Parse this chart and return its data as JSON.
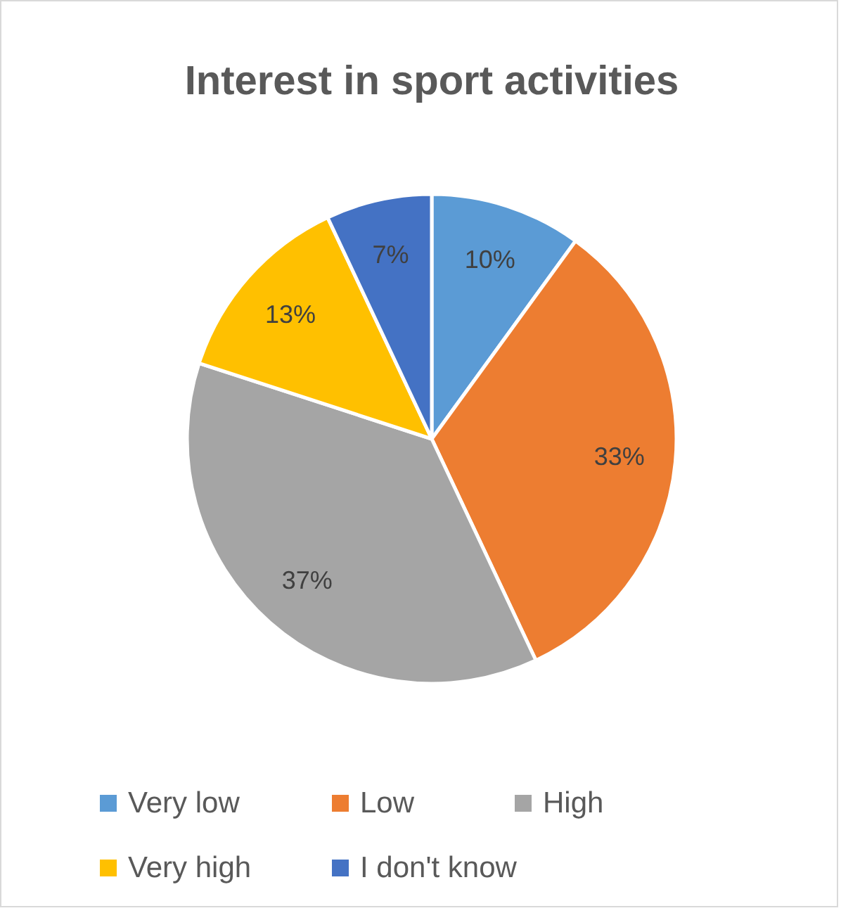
{
  "chart_data": {
    "type": "pie",
    "title": "Interest in sport activities",
    "categories": [
      "Very low",
      "Low",
      "High",
      "Very high",
      "I don't know"
    ],
    "values": [
      10,
      33,
      37,
      13,
      7
    ],
    "value_labels": [
      "10%",
      "33%",
      "37%",
      "13%",
      "7%"
    ],
    "colors": [
      "#5b9bd5",
      "#ed7d31",
      "#a5a5a5",
      "#ffc000",
      "#4472c4"
    ],
    "legend": "bottom"
  }
}
